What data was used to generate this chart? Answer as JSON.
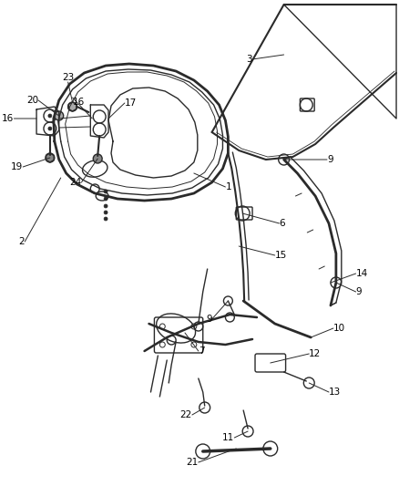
{
  "background_color": "#ffffff",
  "line_color": "#2a2a2a",
  "label_color": "#000000",
  "fig_width": 4.38,
  "fig_height": 5.33,
  "dpi": 100,
  "label_fontsize": 7.5
}
